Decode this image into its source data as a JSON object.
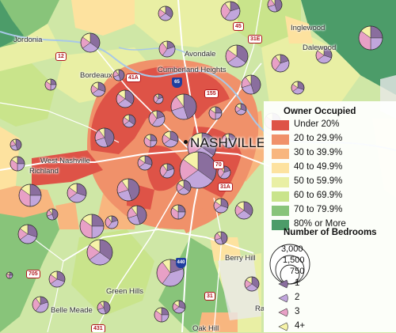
{
  "places": {
    "nashville": "NASHVILLE",
    "jordonia": "Jordonia",
    "bordeaux": "Bordeaux",
    "avondale": "Avondale",
    "cumberland_heights": "Cumberland Heights",
    "inglewood": "Inglewood",
    "dalewood": "Dalewood",
    "west_nashville": "West Nashville",
    "richland": "Richland",
    "green_hills": "Green Hills",
    "belle_meade": "Belle Meade",
    "oak_hill": "Oak Hill",
    "berry_hill": "Berry Hill",
    "ra": "Ra"
  },
  "roads": {
    "r12": "12",
    "r45": "45",
    "r41a": "41A",
    "r31e": "31E",
    "r155": "155",
    "r70": "70",
    "r31a": "31A",
    "r705": "705",
    "r431": "431",
    "r31": "31",
    "i65": "65",
    "i440": "440"
  },
  "legend": {
    "owner_title": "Owner Occupied",
    "owner_classes": [
      {
        "label": "Under 20%",
        "color": "#de5347"
      },
      {
        "label": "20 to 29.9%",
        "color": "#f0916a"
      },
      {
        "label": "30 to 39.9%",
        "color": "#f8b67f"
      },
      {
        "label": "40 to 49.9%",
        "color": "#fde29f"
      },
      {
        "label": "50 to 59.9%",
        "color": "#e9efa4"
      },
      {
        "label": "60 to 69.9%",
        "color": "#c9e48b"
      },
      {
        "label": "70 to 79.9%",
        "color": "#88c47a"
      },
      {
        "label": "80% or More",
        "color": "#4c9c69"
      }
    ],
    "bedrooms_title": "Number of Bedrooms",
    "size_labels": [
      "3,000",
      "1,500",
      "750"
    ],
    "bedroom_classes": [
      {
        "label": "1",
        "color": "#8a6e9e"
      },
      {
        "label": "2",
        "color": "#c1a6dc"
      },
      {
        "label": "3",
        "color": "#e8a0c6"
      },
      {
        "label": "4+",
        "color": "#f6f3a8"
      }
    ]
  }
}
